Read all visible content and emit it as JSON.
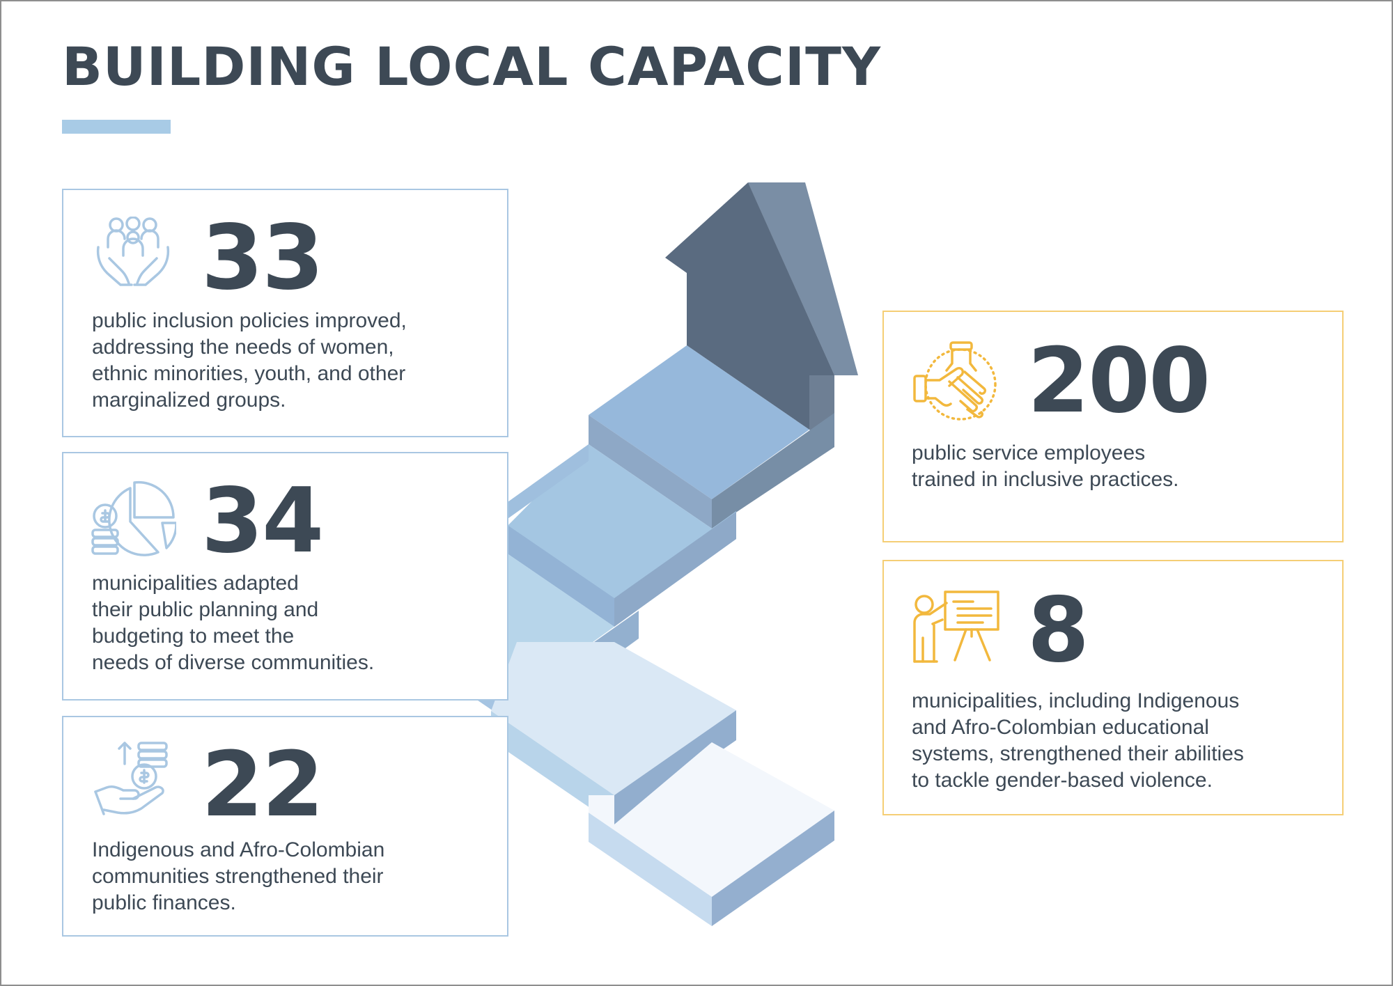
{
  "title": "BUILDING LOCAL CAPACITY",
  "colors": {
    "text": "#3d4955",
    "blue_accent": "#a8cbe6",
    "blue_border": "#a9c7e2",
    "gold_border": "#f5ce75",
    "gold_icon": "#f2b83d",
    "arrow_dark": "#5a6b80"
  },
  "stats": [
    {
      "value": "33",
      "icon": "hands-holding-people-icon",
      "lines": [
        "public inclusion policies improved,",
        "addressing the needs of women,",
        "ethnic minorities, youth, and other",
        "marginalized groups."
      ]
    },
    {
      "value": "34",
      "icon": "pie-chart-coins-icon",
      "lines": [
        "municipalities adapted",
        "their public planning and",
        "budgeting to meet the",
        "needs of diverse communities."
      ]
    },
    {
      "value": "22",
      "icon": "hand-coins-growth-icon",
      "lines": [
        "Indigenous and Afro-Colombian",
        "communities strengthened their",
        "public finances."
      ]
    },
    {
      "value": "200",
      "icon": "handshake-icon",
      "lines": [
        "public service employees",
        "trained in inclusive practices."
      ]
    },
    {
      "value": "8",
      "icon": "presenter-board-icon",
      "lines": [
        "municipalities, including Indigenous",
        "and Afro-Colombian educational",
        "systems, strengthened their abilities",
        "to tackle gender-based violence."
      ]
    }
  ]
}
